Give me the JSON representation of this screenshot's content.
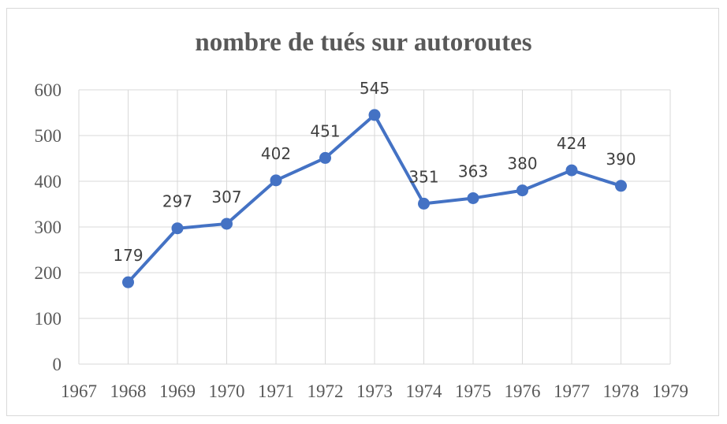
{
  "chart_data": {
    "type": "line",
    "title": "nombre de tués sur autoroutes",
    "xlabel": "",
    "ylabel": "",
    "x_ticks": [
      "1967",
      "1968",
      "1969",
      "1970",
      "1971",
      "1972",
      "1973",
      "1974",
      "1975",
      "1976",
      "1977",
      "1978",
      "1979"
    ],
    "x_range": [
      1967,
      1979
    ],
    "ylim": [
      0,
      600
    ],
    "y_ticks": [
      "0",
      "100",
      "200",
      "300",
      "400",
      "500",
      "600"
    ],
    "grid": true,
    "legend": "none",
    "colors": {
      "series": "#4472c4",
      "grid": "#d9d9d9",
      "text": "#595959"
    },
    "series": [
      {
        "x": [
          1968,
          1969,
          1970,
          1971,
          1972,
          1973,
          1974,
          1975,
          1976,
          1977,
          1978
        ],
        "values": [
          179,
          297,
          307,
          402,
          451,
          545,
          351,
          363,
          380,
          424,
          390
        ],
        "labels": [
          "179",
          "297",
          "307",
          "402",
          "451",
          "545",
          "351",
          "363",
          "380",
          "424",
          "390"
        ]
      }
    ]
  }
}
